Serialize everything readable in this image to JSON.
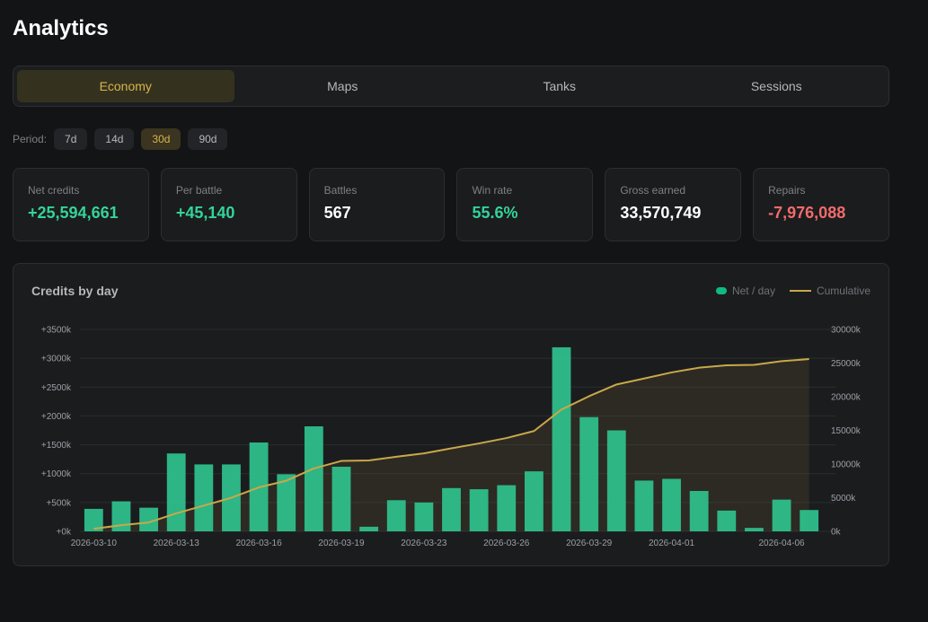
{
  "page": {
    "title": "Analytics"
  },
  "tabs": [
    {
      "label": "Economy",
      "active": true
    },
    {
      "label": "Maps",
      "active": false
    },
    {
      "label": "Tanks",
      "active": false
    },
    {
      "label": "Sessions",
      "active": false
    }
  ],
  "period": {
    "label": "Period:",
    "options": [
      {
        "label": "7d",
        "active": false
      },
      {
        "label": "14d",
        "active": false
      },
      {
        "label": "30d",
        "active": true
      },
      {
        "label": "90d",
        "active": false
      }
    ]
  },
  "stats": [
    {
      "label": "Net credits",
      "value": "+25,594,661",
      "tone": "pos"
    },
    {
      "label": "Per battle",
      "value": "+45,140",
      "tone": "pos"
    },
    {
      "label": "Battles",
      "value": "567",
      "tone": "neutral"
    },
    {
      "label": "Win rate",
      "value": "55.6%",
      "tone": "pos"
    },
    {
      "label": "Gross earned",
      "value": "33,570,749",
      "tone": "neutral"
    },
    {
      "label": "Repairs",
      "value": "-7,976,088",
      "tone": "neg"
    }
  ],
  "colors": {
    "bar": "#2fc28e",
    "line": "#c9a84a",
    "grid": "#2a2c2f",
    "positive": "#34d399",
    "negative": "#f26b6b",
    "accent": "#d9b54a"
  },
  "chart_data": {
    "type": "bar",
    "title": "Credits by day",
    "legend": [
      "Net / day",
      "Cumulative"
    ],
    "legend_position": "top-right",
    "grid": true,
    "x": [
      "2026-03-10",
      "2026-03-11",
      "2026-03-12",
      "2026-03-13",
      "2026-03-14",
      "2026-03-15",
      "2026-03-16",
      "2026-03-17",
      "2026-03-18",
      "2026-03-19",
      "2026-03-20",
      "2026-03-22",
      "2026-03-23",
      "2026-03-24",
      "2026-03-25",
      "2026-03-26",
      "2026-03-27",
      "2026-03-28",
      "2026-03-29",
      "2026-03-30",
      "2026-03-31",
      "2026-04-01",
      "2026-04-02",
      "2026-04-03",
      "2026-04-05",
      "2026-04-06",
      "2026-04-07"
    ],
    "x_tick_labels": [
      "2026-03-10",
      "2026-03-13",
      "2026-03-16",
      "2026-03-19",
      "2026-03-23",
      "2026-03-26",
      "2026-03-29",
      "2026-04-01",
      "2026-04-06"
    ],
    "series": [
      {
        "name": "Net / day",
        "type": "bar",
        "axis": "left",
        "values": [
          390000,
          520000,
          410000,
          1350000,
          1160000,
          1160000,
          1540000,
          990000,
          1820000,
          1120000,
          80000,
          540000,
          500000,
          750000,
          730000,
          800000,
          1040000,
          3190000,
          1980000,
          1750000,
          880000,
          910000,
          700000,
          360000,
          60000,
          550000,
          370000
        ]
      },
      {
        "name": "Cumulative",
        "type": "line",
        "axis": "right",
        "values": [
          390000,
          910000,
          1320000,
          2670000,
          3830000,
          4990000,
          6530000,
          7520000,
          9340000,
          10460000,
          10540000,
          11080000,
          11580000,
          12330000,
          13060000,
          13860000,
          14900000,
          18090000,
          20070000,
          21820000,
          22700000,
          23610000,
          24310000,
          24670000,
          24730000,
          25280000,
          25594661
        ]
      }
    ],
    "y_left": {
      "ticks": [
        "+0k",
        "+500k",
        "+1000k",
        "+1500k",
        "+2000k",
        "+2500k",
        "+3000k",
        "+3500k"
      ],
      "range": [
        0,
        3500000
      ]
    },
    "y_right": {
      "ticks": [
        "0k",
        "5000k",
        "10000k",
        "15000k",
        "20000k",
        "25000k",
        "30000k"
      ],
      "range": [
        0,
        30000000
      ]
    }
  }
}
